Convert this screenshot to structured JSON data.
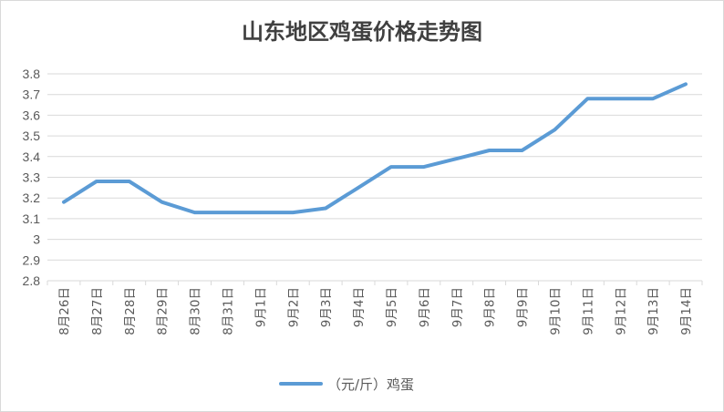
{
  "chart_data": {
    "type": "line",
    "title": "山东地区鸡蛋价格走势图",
    "xlabel": "",
    "ylabel": "",
    "categories": [
      "8月26日",
      "8月27日",
      "8月28日",
      "8月29日",
      "8月30日",
      "8月31日",
      "9月1日",
      "9月2日",
      "9月3日",
      "9月4日",
      "9月5日",
      "9月6日",
      "9月7日",
      "9月8日",
      "9月9日",
      "9月10日",
      "9月11日",
      "9月12日",
      "9月13日",
      "9月14日"
    ],
    "series": [
      {
        "name": "（元/斤）鸡蛋",
        "values": [
          3.18,
          3.28,
          3.28,
          3.18,
          3.13,
          3.13,
          3.13,
          3.13,
          3.15,
          3.25,
          3.35,
          3.35,
          3.39,
          3.43,
          3.43,
          3.53,
          3.68,
          3.68,
          3.68,
          3.75
        ]
      }
    ],
    "ylim": [
      2.8,
      3.8
    ],
    "yticks": [
      "2.8",
      "2.9",
      "3",
      "3.1",
      "3.2",
      "3.3",
      "3.4",
      "3.5",
      "3.6",
      "3.7",
      "3.8"
    ],
    "grid": true,
    "legend": "bottom",
    "colors": {
      "line": "#5b9bd5",
      "grid": "#d9d9d9",
      "axis_text": "#595959"
    }
  }
}
